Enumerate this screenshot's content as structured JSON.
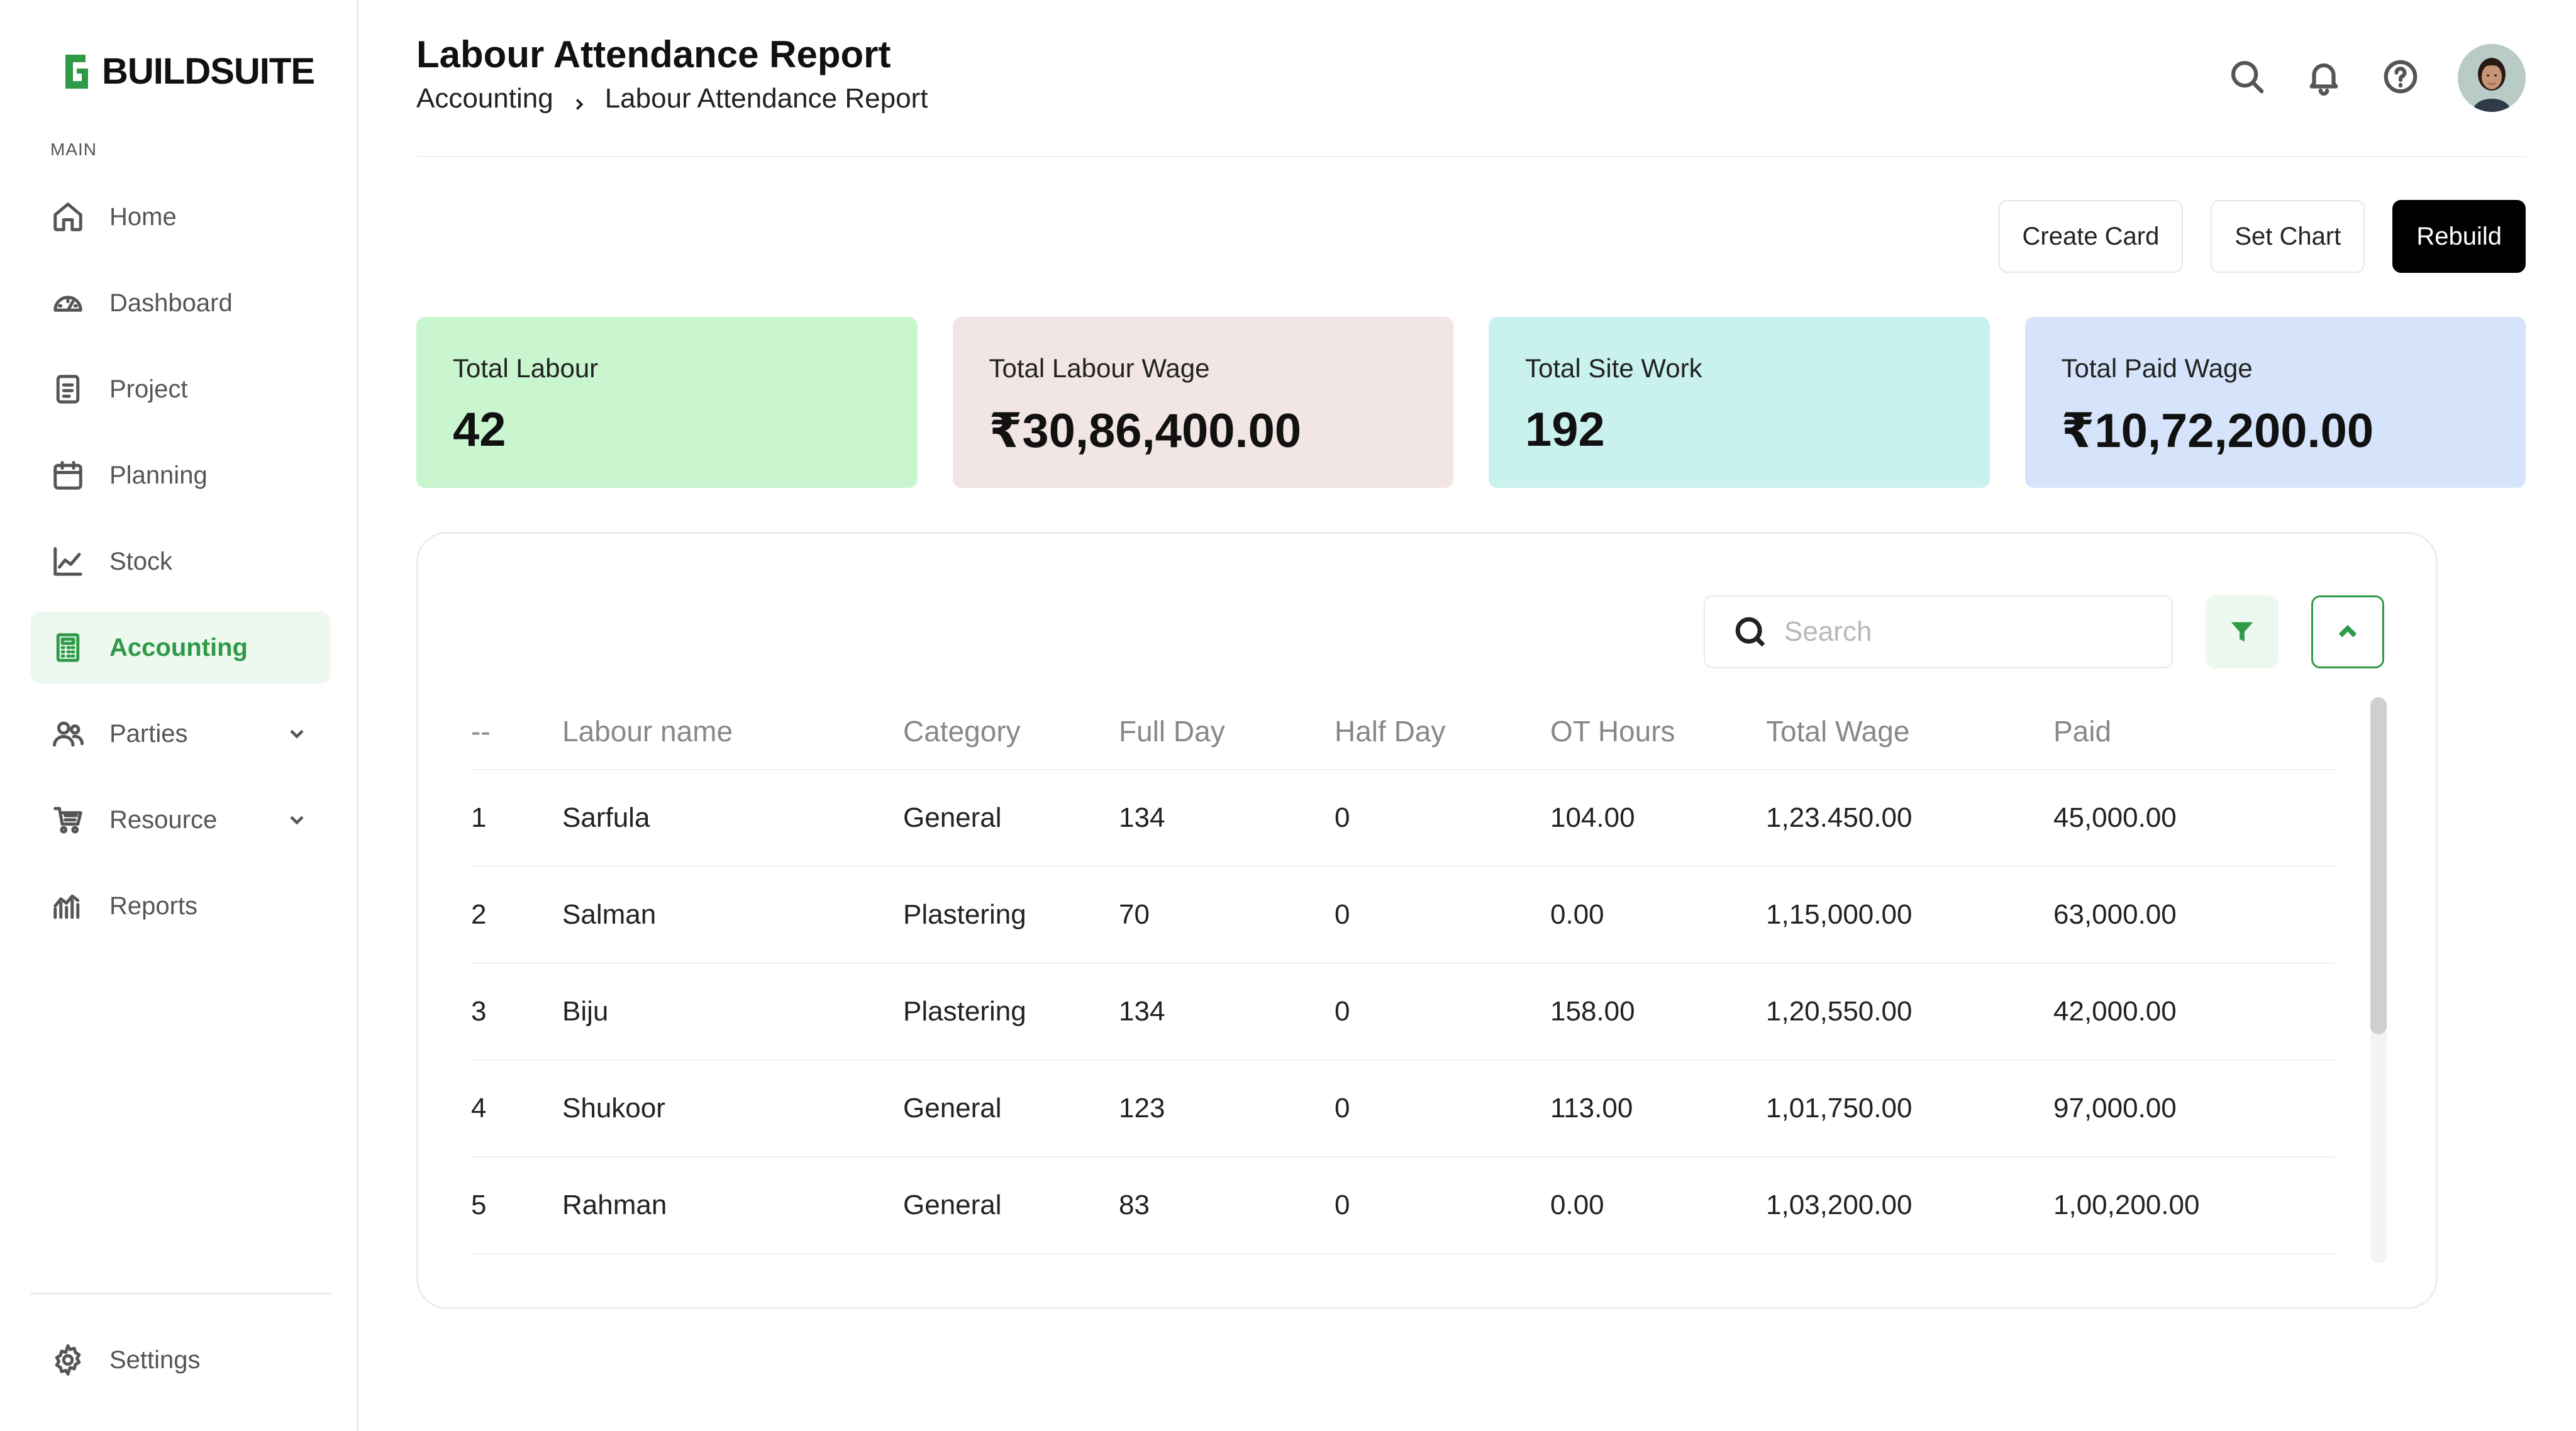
{
  "brand": {
    "name": "BUILDSUITE",
    "accent": "#2e9a47"
  },
  "sidebar": {
    "section_label": "MAIN",
    "items": [
      {
        "label": "Home",
        "icon": "home-icon"
      },
      {
        "label": "Dashboard",
        "icon": "dashboard-icon"
      },
      {
        "label": "Project",
        "icon": "project-icon"
      },
      {
        "label": "Planning",
        "icon": "calendar-icon"
      },
      {
        "label": "Stock",
        "icon": "chart-line-icon"
      },
      {
        "label": "Accounting",
        "icon": "calculator-icon",
        "active": true
      },
      {
        "label": "Parties",
        "icon": "users-icon",
        "expandable": true
      },
      {
        "label": "Resource",
        "icon": "cart-icon",
        "expandable": true
      },
      {
        "label": "Reports",
        "icon": "reports-icon"
      }
    ],
    "settings_label": "Settings"
  },
  "header": {
    "title": "Labour Attendance Report",
    "breadcrumb": [
      "Accounting",
      "Labour Attendance Report"
    ]
  },
  "actions": {
    "create_card": "Create Card",
    "set_chart": "Set Chart",
    "rebuild": "Rebuild"
  },
  "stats": [
    {
      "label": "Total Labour",
      "value": "42",
      "color": "#c9f5cf"
    },
    {
      "label": "Total Labour Wage",
      "value": "₹30,86,400.00",
      "color": "#f2e6e4"
    },
    {
      "label": "Total Site Work",
      "value": "192",
      "color": "#c9f2ee"
    },
    {
      "label": "Total Paid Wage",
      "value": "₹10,72,200.00",
      "color": "#d6e4fb"
    }
  ],
  "table": {
    "search_placeholder": "Search",
    "columns": [
      "--",
      "Labour name",
      "Category",
      "Full Day",
      "Half Day",
      "OT Hours",
      "Total Wage",
      "Paid"
    ],
    "rows": [
      [
        "1",
        "Sarfula",
        "General",
        "134",
        "0",
        "104.00",
        "1,23.450.00",
        "45,000.00"
      ],
      [
        "2",
        "Salman",
        "Plastering",
        "70",
        "0",
        "0.00",
        "1,15,000.00",
        "63,000.00"
      ],
      [
        "3",
        "Biju",
        "Plastering",
        "134",
        "0",
        "158.00",
        "1,20,550.00",
        "42,000.00"
      ],
      [
        "4",
        "Shukoor",
        "General",
        "123",
        "0",
        "113.00",
        "1,01,750.00",
        "97,000.00"
      ],
      [
        "5",
        "Rahman",
        "General",
        "83",
        "0",
        "0.00",
        "1,03,200.00",
        "1,00,200.00"
      ]
    ]
  }
}
